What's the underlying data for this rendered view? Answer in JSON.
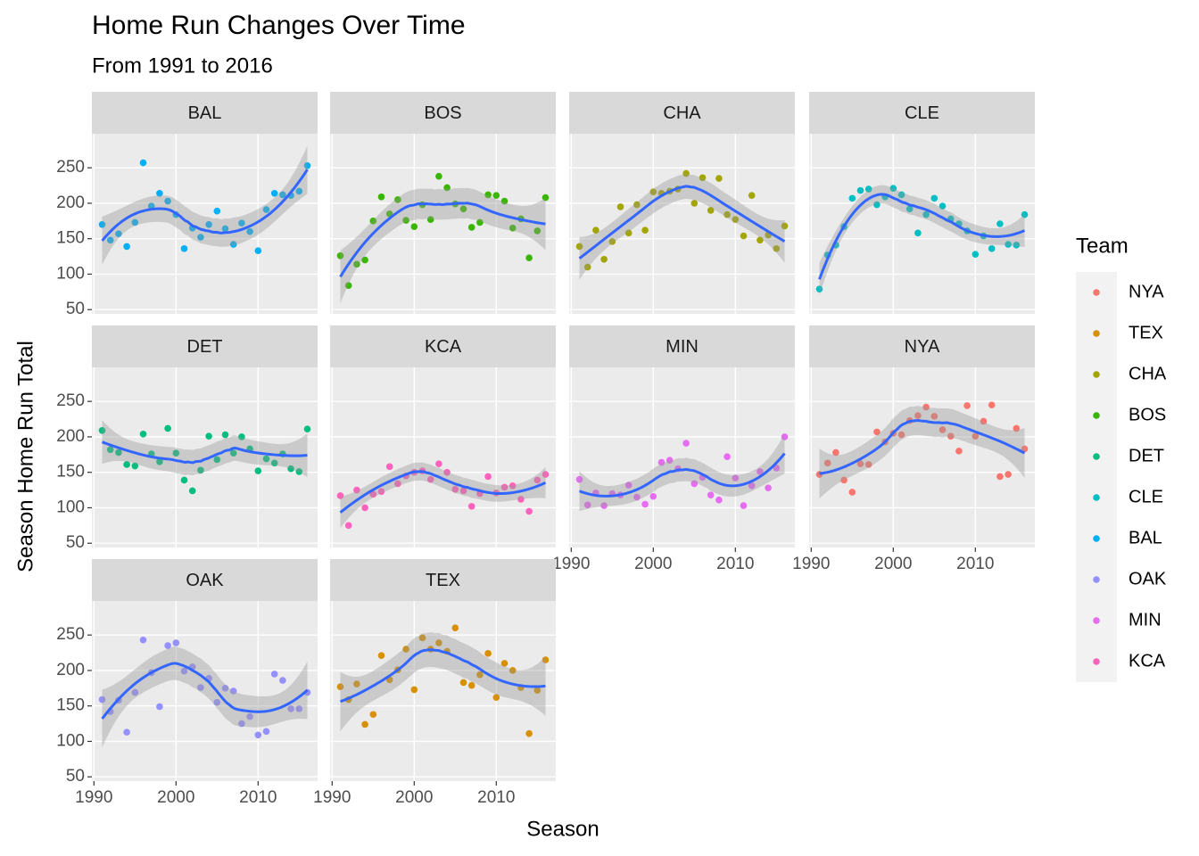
{
  "chart_data": {
    "type": "scatter",
    "title": "Home Run Changes Over Time",
    "subtitle": "From 1991 to 2016",
    "x_label": "Season",
    "y_label": "Season Home Run Total",
    "legend_title": "Team",
    "smooth": true,
    "x": [
      1991,
      1992,
      1993,
      1994,
      1995,
      1996,
      1997,
      1998,
      1999,
      2000,
      2001,
      2002,
      2003,
      2004,
      2005,
      2006,
      2007,
      2008,
      2009,
      2010,
      2011,
      2012,
      2013,
      2014,
      2015,
      2016
    ],
    "xlim": [
      1989.75,
      2017.25
    ],
    "xticks": [
      1990,
      2000,
      2010
    ],
    "ylim": [
      44,
      298
    ],
    "yticks": [
      50,
      100,
      150,
      200,
      250
    ],
    "panels": [
      "BAL",
      "BOS",
      "CHA",
      "CLE",
      "DET",
      "KCA",
      "MIN",
      "NYA",
      "OAK",
      "TEX"
    ],
    "series": [
      {
        "name": "NYA",
        "color": "#F8766D",
        "values": [
          147,
          163,
          178,
          139,
          122,
          162,
          161,
          207,
          193,
          205,
          203,
          223,
          230,
          242,
          229,
          210,
          201,
          180,
          244,
          201,
          222,
          245,
          144,
          147,
          212,
          183
        ]
      },
      {
        "name": "TEX",
        "color": "#D89000",
        "values": [
          177,
          159,
          181,
          124,
          138,
          221,
          187,
          201,
          230,
          173,
          246,
          230,
          239,
          227,
          260,
          183,
          179,
          194,
          224,
          162,
          210,
          200,
          176,
          111,
          172,
          215
        ]
      },
      {
        "name": "CHA",
        "color": "#A3A500",
        "values": [
          139,
          110,
          162,
          121,
          146,
          195,
          158,
          198,
          162,
          216,
          214,
          217,
          220,
          242,
          200,
          236,
          190,
          235,
          184,
          177,
          154,
          211,
          148,
          155,
          136,
          168
        ]
      },
      {
        "name": "BOS",
        "color": "#39B600",
        "values": [
          126,
          84,
          114,
          120,
          175,
          209,
          185,
          205,
          176,
          167,
          198,
          177,
          238,
          222,
          199,
          192,
          166,
          173,
          212,
          211,
          203,
          165,
          178,
          123,
          161,
          208
        ]
      },
      {
        "name": "DET",
        "color": "#00BF7D",
        "values": [
          209,
          182,
          178,
          161,
          159,
          204,
          176,
          165,
          212,
          177,
          139,
          124,
          153,
          201,
          168,
          203,
          177,
          200,
          183,
          152,
          169,
          163,
          176,
          155,
          151,
          211
        ]
      },
      {
        "name": "CLE",
        "color": "#00BFC4",
        "values": [
          79,
          127,
          141,
          167,
          207,
          218,
          220,
          198,
          209,
          221,
          212,
          192,
          158,
          184,
          207,
          196,
          178,
          171,
          161,
          128,
          154,
          136,
          171,
          142,
          141,
          184
        ]
      },
      {
        "name": "BAL",
        "color": "#00B0F6",
        "values": [
          170,
          148,
          157,
          139,
          173,
          257,
          196,
          214,
          203,
          184,
          136,
          165,
          152,
          170,
          189,
          164,
          142,
          172,
          160,
          133,
          191,
          214,
          212,
          211,
          217,
          253
        ]
      },
      {
        "name": "OAK",
        "color": "#9590FF",
        "values": [
          159,
          142,
          158,
          113,
          169,
          243,
          197,
          149,
          235,
          239,
          199,
          205,
          176,
          189,
          155,
          175,
          171,
          125,
          135,
          109,
          114,
          195,
          186,
          146,
          146,
          169
        ]
      },
      {
        "name": "MIN",
        "color": "#E76BF3",
        "values": [
          140,
          104,
          121,
          103,
          120,
          118,
          132,
          115,
          105,
          116,
          164,
          167,
          155,
          191,
          134,
          143,
          118,
          111,
          172,
          142,
          103,
          131,
          151,
          128,
          156,
          200
        ]
      },
      {
        "name": "KCA",
        "color": "#FF62BC",
        "values": [
          117,
          75,
          125,
          100,
          119,
          123,
          158,
          134,
          145,
          150,
          152,
          140,
          162,
          150,
          126,
          124,
          102,
          120,
          144,
          121,
          129,
          131,
          112,
          95,
          139,
          147
        ]
      }
    ]
  }
}
